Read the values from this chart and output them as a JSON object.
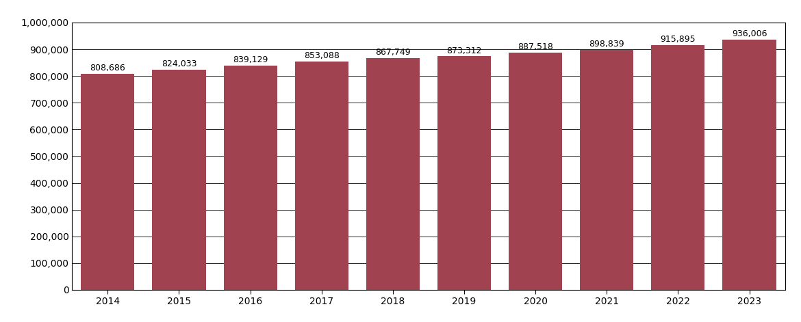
{
  "categories": [
    "2014",
    "2015",
    "2016",
    "2017",
    "2018",
    "2019",
    "2020",
    "2021",
    "2022",
    "2023"
  ],
  "values": [
    808686,
    824033,
    839129,
    853088,
    867749,
    873312,
    887518,
    898839,
    915895,
    936006
  ],
  "labels": [
    "808,686",
    "824,033",
    "839,129",
    "853,088",
    "867,749",
    "873,312",
    "887,518",
    "898,839",
    "915,895",
    "936,006"
  ],
  "bar_color": "#A0424F",
  "background_color": "#ffffff",
  "ylim": [
    0,
    1000000
  ],
  "yticks": [
    0,
    100000,
    200000,
    300000,
    400000,
    500000,
    600000,
    700000,
    800000,
    900000,
    1000000
  ],
  "ytick_labels": [
    "0",
    "100,000",
    "200,000",
    "300,000",
    "400,000",
    "500,000",
    "600,000",
    "700,000",
    "800,000",
    "900,000",
    "1,000,000"
  ],
  "label_fontsize": 9,
  "tick_fontsize": 10,
  "bar_width": 0.75
}
